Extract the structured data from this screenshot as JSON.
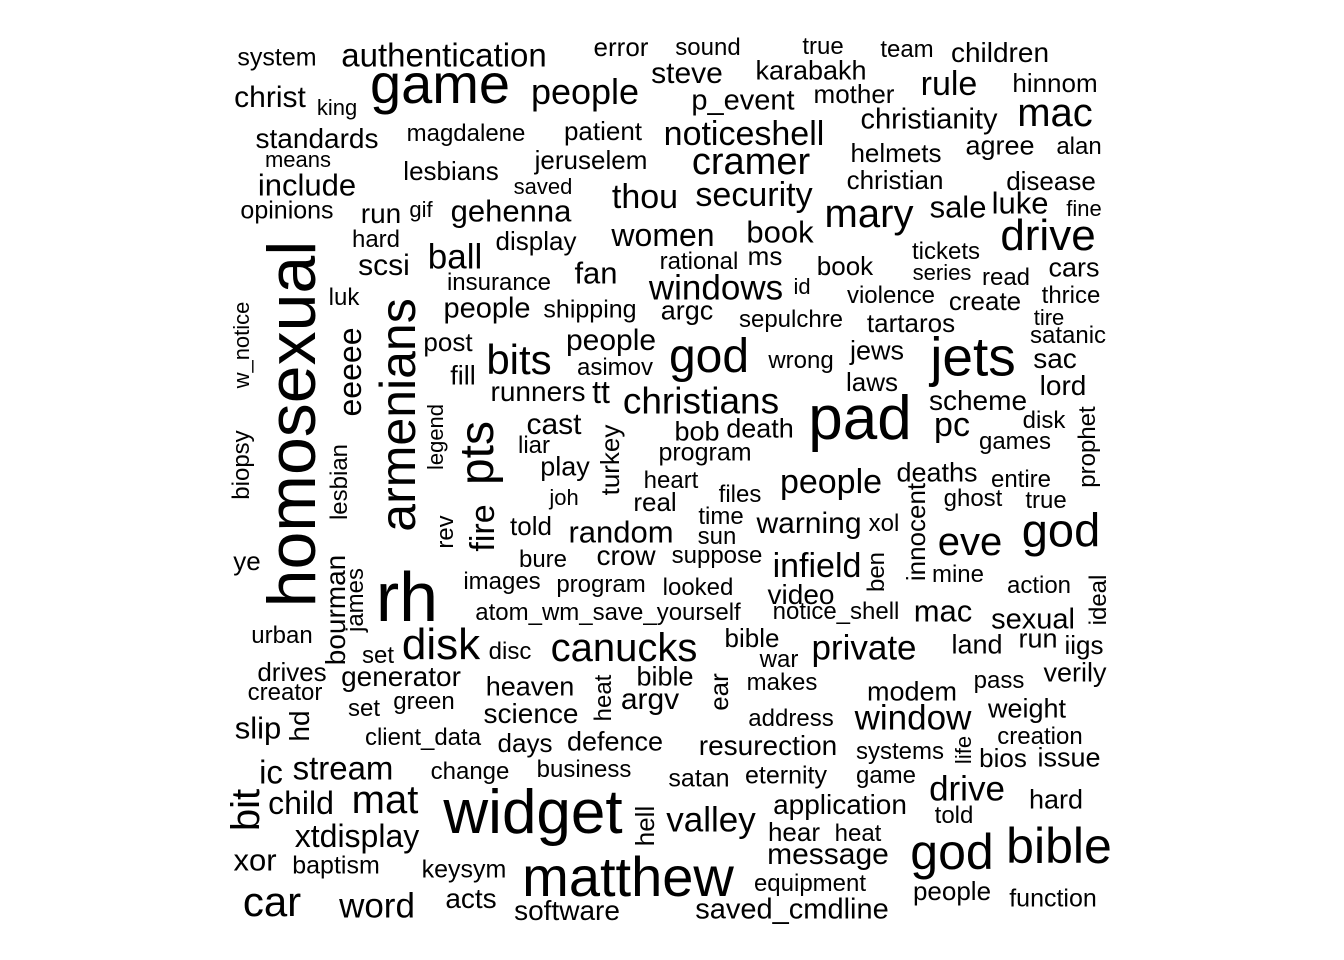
{
  "words": [
    "system",
    "authentication",
    "error",
    "sound",
    "true",
    "team",
    "children",
    "christ",
    "king",
    "game",
    "steve",
    "karabakh",
    "rule",
    "hinnom",
    "people",
    "p_event",
    "mother",
    "mac",
    "standards",
    "magdalene",
    "patient",
    "noticeshell",
    "christianity",
    "means",
    "jeruselem",
    "cramer",
    "helmets",
    "agree",
    "alan",
    "include",
    "lesbians",
    "saved",
    "christian",
    "disease",
    "opinions",
    "run",
    "gif",
    "gehenna",
    "thou",
    "security",
    "mary",
    "sale",
    "luke",
    "fine",
    "hard",
    "display",
    "women",
    "book",
    "drive",
    "homosexual",
    "scsi",
    "ball",
    "rational",
    "ms",
    "book",
    "tickets",
    "series",
    "read",
    "cars",
    "insurance",
    "fan",
    "windows",
    "id",
    "luk",
    "people",
    "shipping",
    "argc",
    "violence",
    "create",
    "thrice",
    "sepulchre",
    "tartaros",
    "tire",
    "satanic",
    "post",
    "people",
    "w_notice",
    "armenians",
    "bits",
    "god",
    "jets",
    "sac",
    "asimov",
    "wrong",
    "jews",
    "fill",
    "lord",
    "eeeee",
    "runners",
    "tt",
    "laws",
    "christians",
    "pad",
    "scheme",
    "disk",
    "cast",
    "bob",
    "death",
    "pc",
    "games",
    "legend",
    "liar",
    "program",
    "prophet",
    "pts",
    "biopsy",
    "heart",
    "play",
    "turkey",
    "deaths",
    "entire",
    "people",
    "lesbian",
    "joh",
    "real",
    "files",
    "ghost",
    "true",
    "time",
    "told",
    "warning",
    "fire",
    "xol",
    "rev",
    "random",
    "innocent",
    "god",
    "sun",
    "eve",
    "suppose",
    "crow",
    "bure",
    "ye",
    "infield",
    "images",
    "program",
    "looked",
    "mine",
    "action",
    "ben",
    "video",
    "rh",
    "ideal",
    "james",
    "atom_wm_save_yourself",
    "notice_shell",
    "mac",
    "sexual",
    "bourman",
    "urban",
    "disk",
    "canucks",
    "bible",
    "land",
    "run",
    "iigs",
    "set",
    "disc",
    "private",
    "war",
    "drives",
    "generator",
    "bible",
    "verily",
    "pass",
    "makes",
    "creator",
    "heaven",
    "modem",
    "argv",
    "green",
    "heat",
    "set",
    "ear",
    "weight",
    "window",
    "science",
    "address",
    "slip",
    "hd",
    "client_data",
    "days",
    "defence",
    "creation",
    "resurection",
    "life",
    "systems",
    "bios",
    "issue",
    "stream",
    "change",
    "business",
    "ic",
    "satan",
    "eternity",
    "game",
    "bit",
    "child",
    "mat",
    "drive",
    "hard",
    "application",
    "widget",
    "told",
    "valley",
    "xtdisplay",
    "hell",
    "heat",
    "hear",
    "god",
    "bible",
    "message",
    "xor",
    "baptism",
    "keysym",
    "equipment",
    "matthew",
    "people",
    "car",
    "acts",
    "function",
    "word",
    "saved_cmdline",
    "software"
  ]
}
